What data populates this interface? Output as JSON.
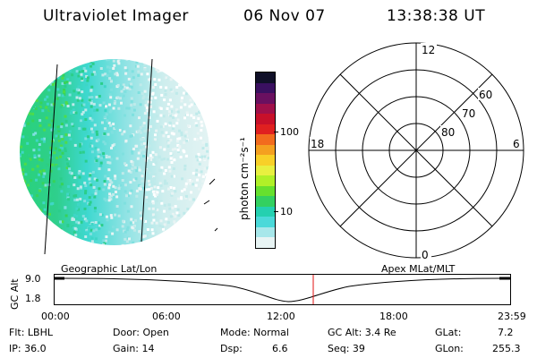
{
  "header": {
    "title": "Ultraviolet Imager",
    "date": "06 Nov 07",
    "time": "13:38:38 UT"
  },
  "colorbar": {
    "unit_label": "photon cm⁻²s⁻¹",
    "tick_100": "100",
    "tick_10": "10",
    "colors": [
      "#e8f4f4",
      "#a7e7ea",
      "#4ad9d9",
      "#24d0b0",
      "#33d060",
      "#66e02e",
      "#b0f028",
      "#e8f040",
      "#f8d028",
      "#f4a020",
      "#f26b1e",
      "#e02020",
      "#c8102a",
      "#a0104a",
      "#6a1060",
      "#3a1060",
      "#101028"
    ]
  },
  "polar_plot": {
    "label_top": "12",
    "label_bottom": "0",
    "label_left": "18",
    "label_right": "6",
    "label_ring_60": "60",
    "label_ring_70": "70",
    "label_ring_80": "80"
  },
  "timeline": {
    "y_axis_label": "GC Alt",
    "y_ticks": [
      "9.0",
      "1.8"
    ],
    "left_label": "Geographic Lat/Lon",
    "right_label": "Apex MLat/MLT",
    "x_ticks": [
      "00:00",
      "06:00",
      "12:00",
      "18:00",
      "23:59"
    ],
    "marker_color": "#e01010"
  },
  "info": {
    "row1": {
      "filter": "Flt: LBHL",
      "door": "Door: Open",
      "mode": "Mode: Normal",
      "gc_alt": "GC Alt: 3.4 Re",
      "glat_label": "GLat:",
      "glat_value": "7.2"
    },
    "row2": {
      "ip": "IP: 36.0",
      "gain": "Gain: 14",
      "dsp_label": "Dsp:",
      "dsp_value": "6.6",
      "seq": "Seq: 39",
      "glon_label": "GLon:",
      "glon_value": "255.3"
    }
  }
}
